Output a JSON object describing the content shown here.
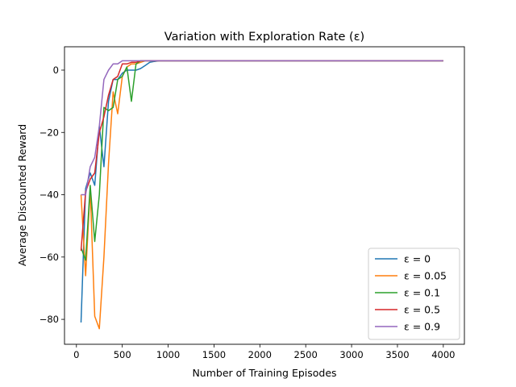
{
  "chart_data": {
    "type": "line",
    "title": "Variation with Exploration Rate (ε)",
    "xlabel": "Number of Training Episodes",
    "ylabel": "Average Discounted Reward",
    "xlim": [
      -130,
      4230
    ],
    "ylim": [
      -88,
      7.5
    ],
    "xticks": [
      0,
      500,
      1000,
      1500,
      2000,
      2500,
      3000,
      3500,
      4000
    ],
    "yticks": [
      -80,
      -60,
      -40,
      -20,
      0
    ],
    "ytick_labels": [
      "−80",
      "−60",
      "−40",
      "−20",
      "0"
    ],
    "grid": false,
    "legend_position": "lower-right",
    "series": [
      {
        "name": "ε = 0",
        "color": "#1f77b4",
        "x": [
          50,
          100,
          150,
          200,
          250,
          300,
          350,
          400,
          450,
          500,
          550,
          600,
          650,
          700,
          750,
          800,
          850,
          900,
          950,
          1000,
          1200,
          1400,
          1600,
          1800,
          2000,
          2200,
          2400,
          2600,
          2800,
          3000,
          3200,
          3400,
          3600,
          3800,
          4000
        ],
        "values": [
          -81,
          -38,
          -33,
          -37,
          -18,
          -31,
          -10,
          -3,
          -3,
          -1,
          0,
          0,
          0,
          0.5,
          1.5,
          2.5,
          2.8,
          3,
          3,
          3,
          3,
          3,
          3,
          3,
          3,
          3,
          3,
          3,
          3,
          3,
          3,
          3,
          3,
          3,
          3
        ]
      },
      {
        "name": "ε = 0.05",
        "color": "#ff7f0e",
        "x": [
          50,
          100,
          150,
          200,
          250,
          300,
          350,
          400,
          450,
          500,
          550,
          600,
          650,
          700,
          750,
          800,
          850,
          900,
          950,
          1000,
          1200,
          1400,
          1600,
          1800,
          2000,
          2200,
          2400,
          2600,
          2800,
          3000,
          3200,
          3400,
          3600,
          3800,
          4000
        ],
        "values": [
          -40,
          -66,
          -38,
          -79,
          -83,
          -60,
          -30,
          -7,
          -14,
          -2,
          1,
          2,
          2,
          2.5,
          3,
          3,
          3,
          3,
          3,
          3,
          3,
          3,
          3,
          3,
          3,
          3,
          3,
          3,
          3,
          3,
          3,
          3,
          3,
          3,
          3
        ]
      },
      {
        "name": "ε = 0.1",
        "color": "#2ca02c",
        "x": [
          50,
          100,
          150,
          200,
          250,
          300,
          350,
          400,
          450,
          500,
          550,
          600,
          650,
          700,
          750,
          800,
          850,
          900,
          950,
          1000,
          1200,
          1400,
          1600,
          1800,
          2000,
          2200,
          2400,
          2600,
          2800,
          3000,
          3200,
          3400,
          3600,
          3800,
          4000
        ],
        "values": [
          -57,
          -61,
          -37,
          -55,
          -40,
          -12,
          -13,
          -12,
          -3,
          -2,
          1,
          -10,
          2,
          3,
          3,
          3,
          3,
          3,
          3,
          3,
          3,
          3,
          3,
          3,
          3,
          3,
          3,
          3,
          3,
          3,
          3,
          3,
          3,
          3,
          3
        ]
      },
      {
        "name": "ε = 0.5",
        "color": "#d62728",
        "x": [
          50,
          100,
          150,
          200,
          250,
          300,
          350,
          400,
          450,
          500,
          550,
          600,
          650,
          700,
          750,
          800,
          850,
          900,
          950,
          1000,
          1200,
          1400,
          1600,
          1800,
          2000,
          2200,
          2400,
          2600,
          2800,
          3000,
          3200,
          3400,
          3600,
          3800,
          4000
        ],
        "values": [
          -58,
          -39,
          -35,
          -33,
          -20,
          -15,
          -8,
          -3,
          -2,
          2,
          2,
          2.5,
          2.5,
          3,
          3,
          3,
          3,
          3,
          3,
          3,
          3,
          3,
          3,
          3,
          3,
          3,
          3,
          3,
          3,
          3,
          3,
          3,
          3,
          3,
          3
        ]
      },
      {
        "name": "ε = 0.9",
        "color": "#9467bd",
        "x": [
          50,
          100,
          150,
          200,
          250,
          300,
          350,
          400,
          450,
          500,
          550,
          600,
          650,
          700,
          750,
          800,
          850,
          900,
          950,
          1000,
          1200,
          1400,
          1600,
          1800,
          2000,
          2200,
          2400,
          2600,
          2800,
          3000,
          3200,
          3400,
          3600,
          3800,
          4000
        ],
        "values": [
          -40,
          -40,
          -31,
          -28,
          -18,
          -3,
          0,
          2,
          2,
          3,
          3,
          3,
          3,
          3,
          3,
          3,
          3,
          3,
          3,
          3,
          3,
          3,
          3,
          3,
          3,
          3,
          3,
          3,
          3,
          3,
          3,
          3,
          3,
          3,
          3
        ]
      }
    ]
  }
}
